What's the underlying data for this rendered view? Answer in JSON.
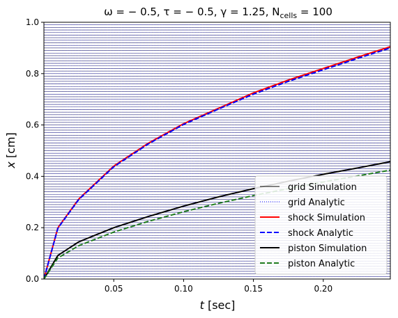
{
  "chart_data": {
    "type": "line",
    "title": "ω = − 0.5,   τ = − 0.5,   γ = 1.25,   N",
    "title_subscript": "cells",
    "title_suffix": " = 100",
    "xlabel_var": "t",
    "xlabel_unit": " [sec]",
    "ylabel_var": "x",
    "ylabel_unit": " [cm]",
    "xlim": [
      0.0,
      0.248
    ],
    "ylim": [
      0.0,
      1.0
    ],
    "xticks": [
      0.05,
      0.1,
      0.15,
      0.2
    ],
    "xtick_labels": [
      "0.05",
      "0.10",
      "0.15",
      "0.20"
    ],
    "yticks": [
      0.0,
      0.2,
      0.4,
      0.6,
      0.8,
      1.0
    ],
    "ytick_labels": [
      "0.0",
      "0.2",
      "0.4",
      "0.6",
      "0.8",
      "1.0"
    ],
    "grid": false,
    "legend_position": "bottom-right",
    "series": [
      {
        "name": "grid Simulation",
        "color": "#000000",
        "style": "solid",
        "description_values": {
          "count": 100,
          "initial_positions_start": 0.0,
          "initial_positions_end": 0.99
        }
      },
      {
        "name": "grid Analytic",
        "color": "#0000ff",
        "style": "dotted",
        "description_values": {
          "count": 100
        }
      },
      {
        "name": "shock Simulation",
        "color": "#ff0000",
        "style": "solid",
        "x": [
          0.0,
          0.01,
          0.025,
          0.05,
          0.075,
          0.1,
          0.125,
          0.15,
          0.175,
          0.2,
          0.225,
          0.248
        ],
        "y": [
          0.0,
          0.2,
          0.312,
          0.44,
          0.53,
          0.605,
          0.665,
          0.725,
          0.775,
          0.82,
          0.865,
          0.905
        ]
      },
      {
        "name": "shock Analytic",
        "color": "#0000ff",
        "style": "dashed",
        "x": [
          0.0,
          0.01,
          0.025,
          0.05,
          0.075,
          0.1,
          0.125,
          0.15,
          0.175,
          0.2,
          0.225,
          0.248
        ],
        "y": [
          0.0,
          0.198,
          0.31,
          0.437,
          0.527,
          0.602,
          0.662,
          0.72,
          0.77,
          0.815,
          0.86,
          0.9
        ]
      },
      {
        "name": "piston Simulation",
        "color": "#000000",
        "style": "solid",
        "x": [
          0.0,
          0.01,
          0.025,
          0.05,
          0.075,
          0.1,
          0.125,
          0.15,
          0.175,
          0.2,
          0.225,
          0.248
        ],
        "y": [
          0.0,
          0.092,
          0.145,
          0.2,
          0.244,
          0.284,
          0.32,
          0.352,
          0.381,
          0.408,
          0.433,
          0.457
        ]
      },
      {
        "name": "piston Analytic",
        "color": "#1e7a1e",
        "style": "dashed",
        "x": [
          0.0,
          0.01,
          0.025,
          0.05,
          0.075,
          0.1,
          0.125,
          0.15,
          0.175,
          0.2,
          0.225,
          0.248
        ],
        "y": [
          0.0,
          0.082,
          0.13,
          0.183,
          0.225,
          0.262,
          0.295,
          0.325,
          0.352,
          0.378,
          0.402,
          0.424
        ]
      }
    ]
  }
}
